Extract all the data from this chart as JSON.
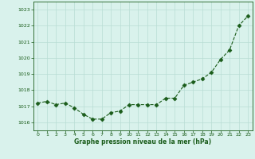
{
  "x": [
    0,
    1,
    2,
    3,
    4,
    5,
    6,
    7,
    8,
    9,
    10,
    11,
    12,
    13,
    14,
    15,
    16,
    17,
    18,
    19,
    20,
    21,
    22,
    23
  ],
  "y": [
    1017.2,
    1017.3,
    1017.1,
    1017.2,
    1016.9,
    1016.5,
    1016.2,
    1016.2,
    1016.6,
    1016.7,
    1017.1,
    1017.1,
    1017.1,
    1017.1,
    1017.5,
    1017.5,
    1018.3,
    1018.5,
    1018.7,
    1019.1,
    1019.9,
    1020.5,
    1022.0,
    1022.6
  ],
  "line_color": "#1a5c1a",
  "marker": "D",
  "marker_size": 2.5,
  "bg_color": "#d9f2ec",
  "grid_color": "#b8ddd4",
  "xlabel": "Graphe pression niveau de la mer (hPa)",
  "xlabel_color": "#1a5c1a",
  "tick_color": "#1a5c1a",
  "ylim": [
    1015.5,
    1023.5
  ],
  "yticks": [
    1016,
    1017,
    1018,
    1019,
    1020,
    1021,
    1022,
    1023
  ],
  "xticks": [
    0,
    1,
    2,
    3,
    4,
    5,
    6,
    7,
    8,
    9,
    10,
    11,
    12,
    13,
    14,
    15,
    16,
    17,
    18,
    19,
    20,
    21,
    22,
    23
  ]
}
